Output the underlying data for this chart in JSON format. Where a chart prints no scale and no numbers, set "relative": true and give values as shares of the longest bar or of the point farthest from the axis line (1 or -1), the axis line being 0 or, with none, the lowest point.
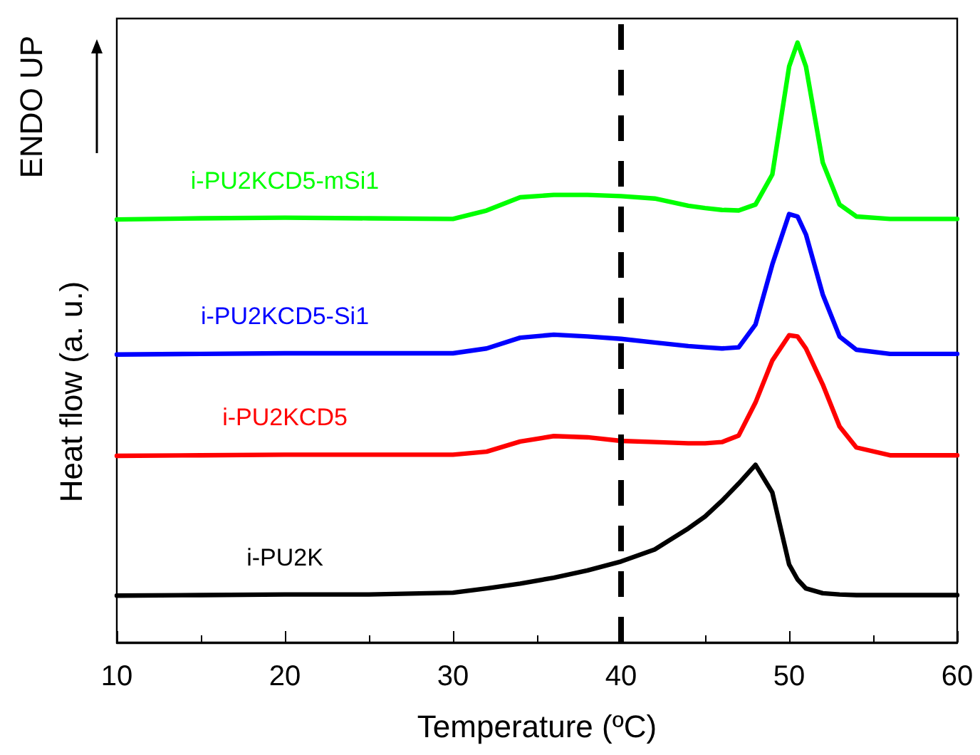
{
  "chart_data": {
    "type": "line",
    "relative": true,
    "xlabel": "Temperature (ºC)",
    "ylabel": "Heat flow (a. u.)",
    "annotations": [
      "ENDO UP"
    ],
    "xlim": [
      10,
      60
    ],
    "xticks": [
      10,
      20,
      30,
      40,
      50,
      60
    ],
    "grid": false,
    "legend": false,
    "marker": "none",
    "line_style": "solid",
    "x": [
      10,
      15,
      20,
      25,
      30,
      32,
      34,
      36,
      38,
      40,
      42,
      44,
      45,
      46,
      47,
      48,
      49,
      50,
      50.5,
      51,
      52,
      53,
      54,
      56,
      60
    ],
    "ref_lines": [
      {
        "axis": "x",
        "value": 40,
        "color": "#000000",
        "line_style": "dashed"
      }
    ],
    "series": [
      {
        "name": "i-PU2KCD5-mSi1",
        "color": "#00ff00",
        "values": [
          0.705,
          0.707,
          0.708,
          0.707,
          0.706,
          0.72,
          0.742,
          0.746,
          0.746,
          0.744,
          0.74,
          0.728,
          0.724,
          0.721,
          0.72,
          0.73,
          0.78,
          0.96,
          1.0,
          0.96,
          0.8,
          0.73,
          0.71,
          0.706,
          0.706
        ]
      },
      {
        "name": "i-PU2KCD5-Si1",
        "color": "#0000ff",
        "values": [
          0.48,
          0.481,
          0.482,
          0.482,
          0.482,
          0.49,
          0.508,
          0.513,
          0.51,
          0.506,
          0.5,
          0.494,
          0.492,
          0.49,
          0.492,
          0.53,
          0.63,
          0.714,
          0.71,
          0.68,
          0.58,
          0.51,
          0.488,
          0.481,
          0.481
        ]
      },
      {
        "name": "i-PU2KCD5",
        "color": "#ff0000",
        "values": [
          0.311,
          0.312,
          0.313,
          0.313,
          0.313,
          0.318,
          0.335,
          0.344,
          0.342,
          0.336,
          0.334,
          0.332,
          0.332,
          0.334,
          0.345,
          0.4,
          0.47,
          0.512,
          0.51,
          0.49,
          0.43,
          0.36,
          0.325,
          0.312,
          0.312
        ]
      },
      {
        "name": "i-PU2K",
        "color": "#000000",
        "values": [
          0.078,
          0.079,
          0.08,
          0.08,
          0.083,
          0.09,
          0.098,
          0.108,
          0.12,
          0.135,
          0.155,
          0.19,
          0.21,
          0.236,
          0.265,
          0.296,
          0.25,
          0.13,
          0.105,
          0.09,
          0.082,
          0.08,
          0.079,
          0.079,
          0.079
        ]
      }
    ]
  }
}
